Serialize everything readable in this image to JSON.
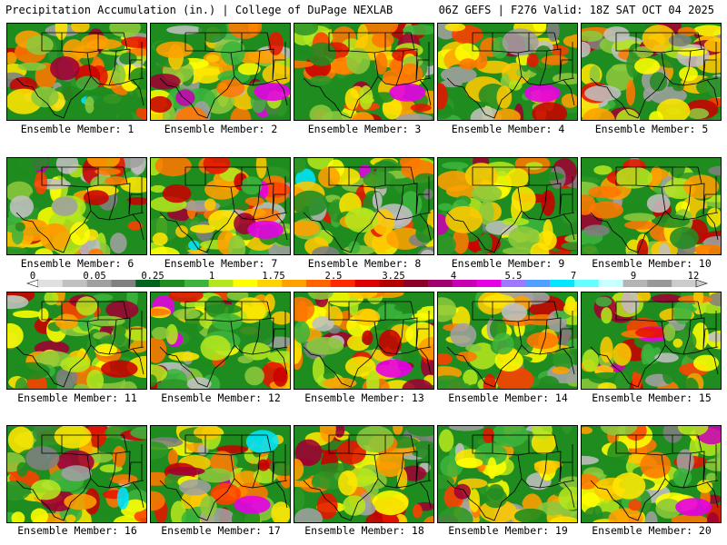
{
  "header": {
    "title_left": "Precipitation Accumulation (in.) | College of DuPage NEXLAB",
    "title_right": "06Z GEFS | F276 Valid: 18Z SAT OCT 04 2025"
  },
  "caption_prefix": "Ensemble Member:",
  "members": [
    {
      "id": 1,
      "label": "Ensemble Member: 1",
      "wetness": 0.55
    },
    {
      "id": 2,
      "label": "Ensemble Member: 2",
      "wetness": 0.72
    },
    {
      "id": 3,
      "label": "Ensemble Member: 3",
      "wetness": 0.7
    },
    {
      "id": 4,
      "label": "Ensemble Member: 4",
      "wetness": 0.75
    },
    {
      "id": 5,
      "label": "Ensemble Member: 5",
      "wetness": 0.55
    },
    {
      "id": 6,
      "label": "Ensemble Member: 6",
      "wetness": 0.45
    },
    {
      "id": 7,
      "label": "Ensemble Member: 7",
      "wetness": 0.72
    },
    {
      "id": 8,
      "label": "Ensemble Member: 8",
      "wetness": 0.45
    },
    {
      "id": 9,
      "label": "Ensemble Member: 9",
      "wetness": 0.4
    },
    {
      "id": 10,
      "label": "Ensemble Member: 10",
      "wetness": 0.42
    },
    {
      "id": 11,
      "label": "Ensemble Member: 11",
      "wetness": 0.45
    },
    {
      "id": 12,
      "label": "Ensemble Member: 12",
      "wetness": 0.6
    },
    {
      "id": 13,
      "label": "Ensemble Member: 13",
      "wetness": 0.75
    },
    {
      "id": 14,
      "label": "Ensemble Member: 14",
      "wetness": 0.5
    },
    {
      "id": 15,
      "label": "Ensemble Member: 15",
      "wetness": 0.5
    },
    {
      "id": 16,
      "label": "Ensemble Member: 16",
      "wetness": 0.45
    },
    {
      "id": 17,
      "label": "Ensemble Member: 17",
      "wetness": 0.7
    },
    {
      "id": 18,
      "label": "Ensemble Member: 18",
      "wetness": 0.65
    },
    {
      "id": 19,
      "label": "Ensemble Member: 19",
      "wetness": 0.45
    },
    {
      "id": 20,
      "label": "Ensemble Member: 20",
      "wetness": 0.7
    }
  ],
  "colorbar": {
    "labels": [
      "0",
      "0.05",
      "0.25",
      "1",
      "1.75",
      "2.5",
      "3.25",
      "4",
      "5.5",
      "7",
      "9",
      "12"
    ],
    "colors": [
      "#e0e0e0",
      "#c0c0c0",
      "#a0a0a0",
      "#808080",
      "#00641e",
      "#1e8c1e",
      "#3cb43c",
      "#b4e61e",
      "#ffff00",
      "#ffd200",
      "#ffa000",
      "#ff6400",
      "#ff2800",
      "#dc0000",
      "#b40000",
      "#8c0028",
      "#a0006e",
      "#c800b4",
      "#e600e6",
      "#a078ff",
      "#50a0ff",
      "#00e6ff",
      "#64ffff",
      "#c8ffff",
      "#b4b4b4",
      "#999999",
      "#cccccc"
    ]
  },
  "map_palette": {
    "dry": [
      "#1e8c1e",
      "#2d9628",
      "#3cb43c",
      "#228b22"
    ],
    "light": [
      "#8cc83c",
      "#b4e61e",
      "#ffff00",
      "#ffe600"
    ],
    "moderate": [
      "#ffc800",
      "#ffa000",
      "#ff7800"
    ],
    "heavy": [
      "#ff4000",
      "#e61400",
      "#c80000",
      "#a00032"
    ],
    "extreme": [
      "#c800b4",
      "#e600e6",
      "#00e6ff",
      "#b4b4b4"
    ],
    "gray": [
      "#a0a0a0",
      "#c0c0c0",
      "#808080"
    ],
    "border": "#000000"
  }
}
